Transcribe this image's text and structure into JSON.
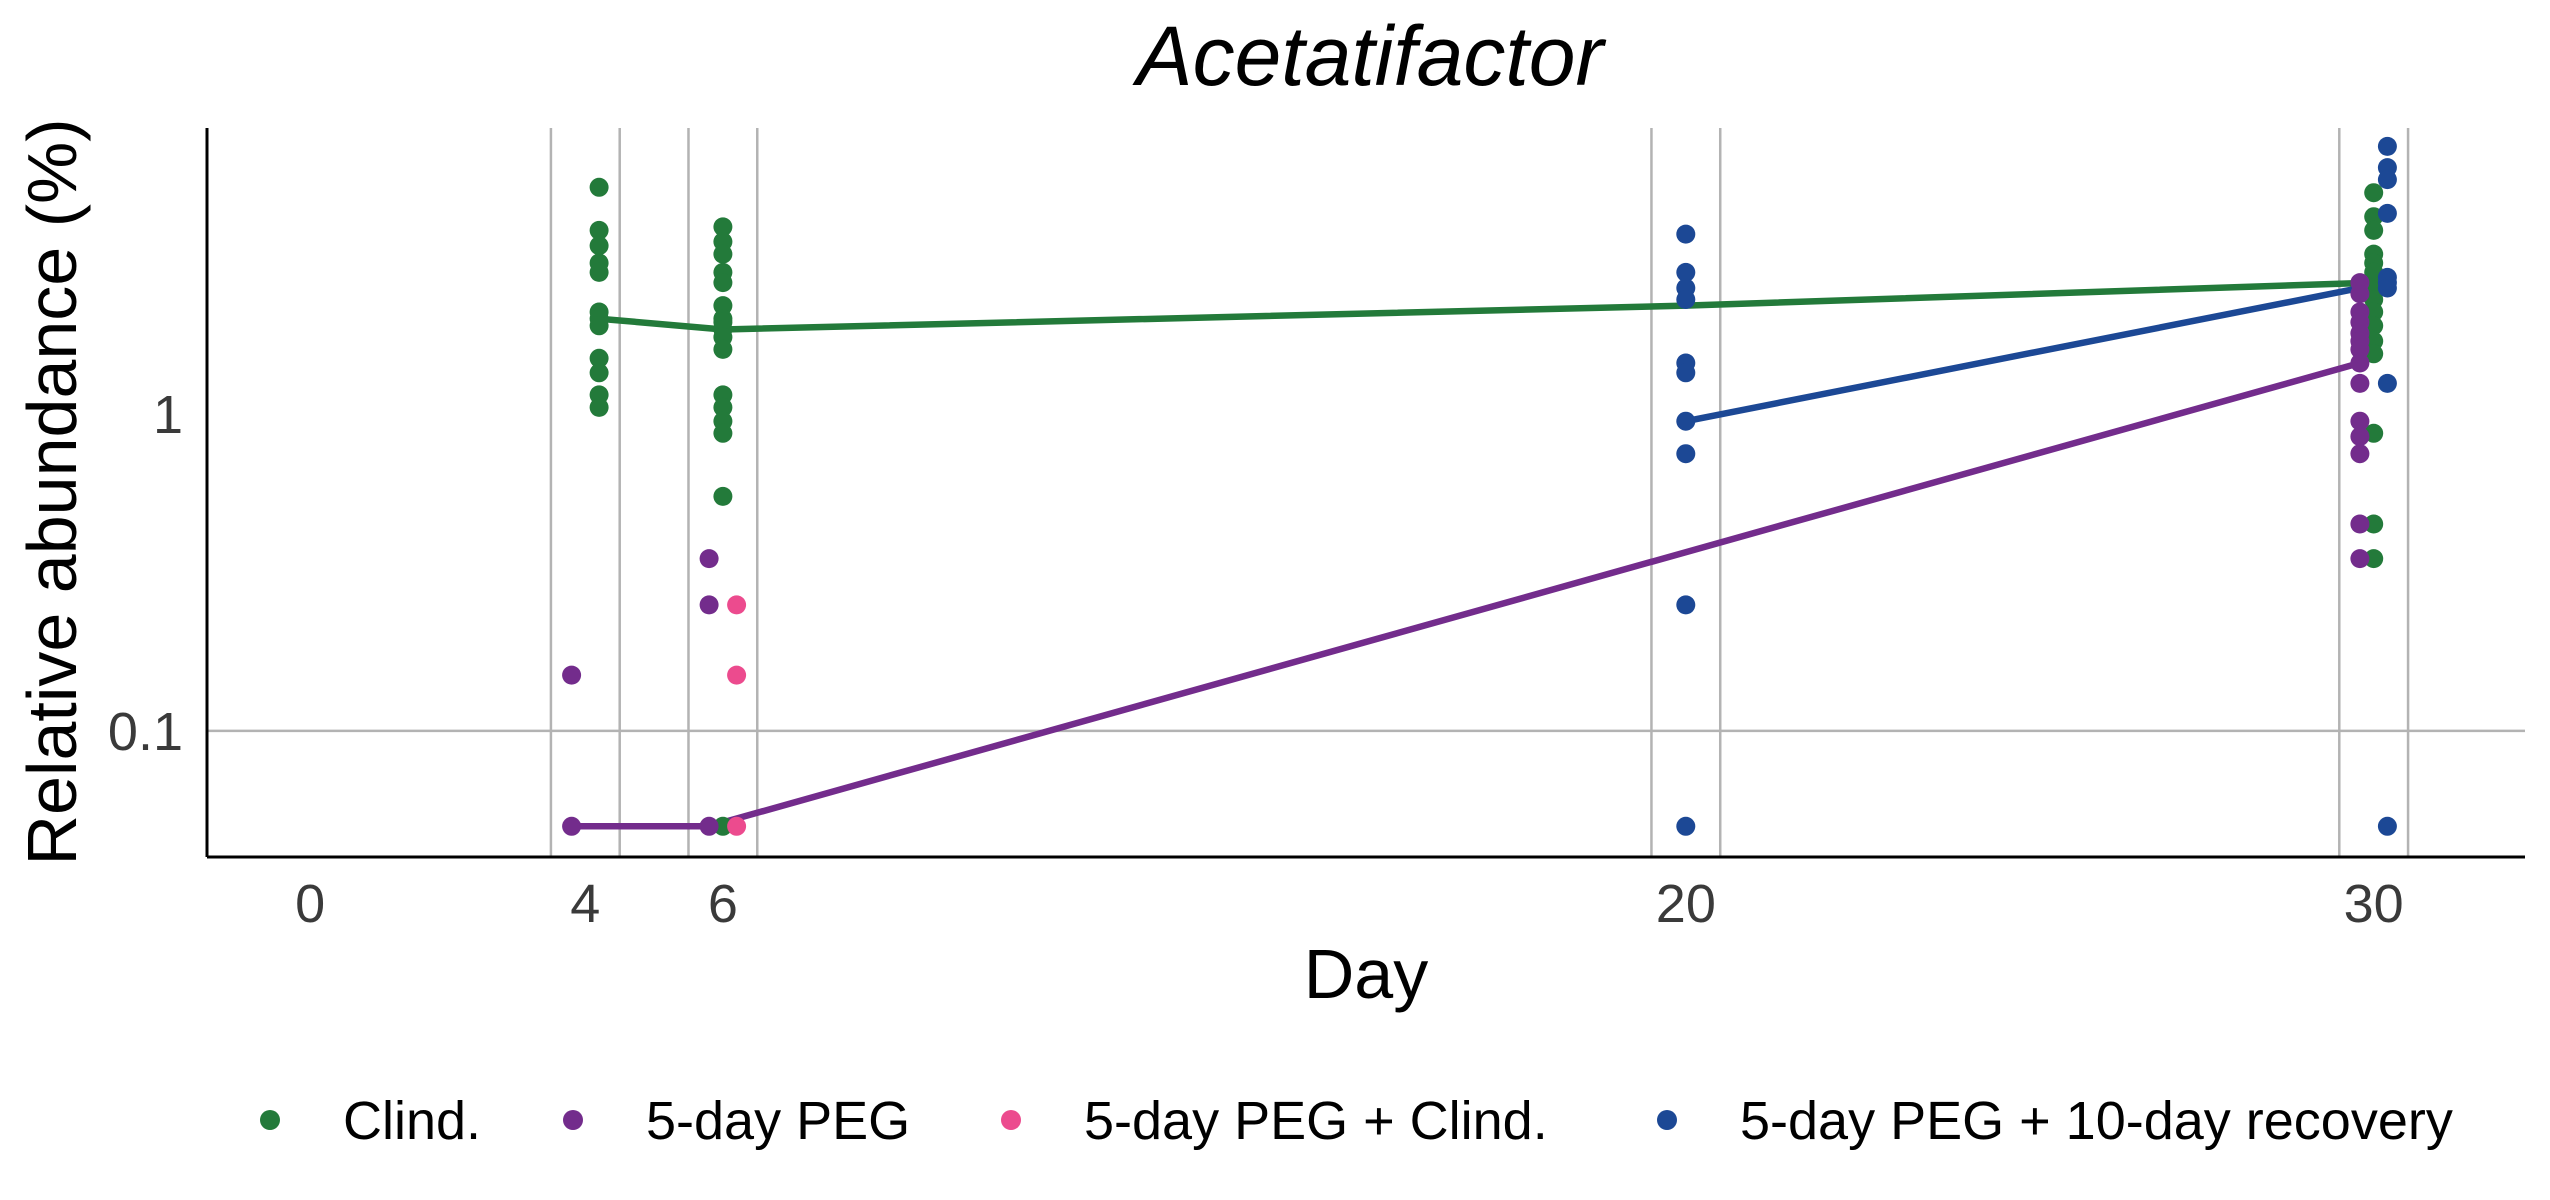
{
  "chart_data": {
    "type": "scatter",
    "title": "Acetatifactor",
    "xlabel": "Day",
    "ylabel": "Relative abundance (%)",
    "y_scale": "log",
    "xlim": [
      -1.5,
      32.2
    ],
    "ylim": [
      0.04,
      8
    ],
    "x_ticks": [
      0,
      4,
      6,
      20,
      30
    ],
    "x_tick_labels": [
      "0",
      "4",
      "6",
      "20",
      "30"
    ],
    "y_ticks": [
      0.1,
      1
    ],
    "y_tick_labels": [
      "0.1",
      "1"
    ],
    "grid": {
      "horizontal_lines_at": [
        0.1
      ],
      "vertical_lines_at": [
        3.5,
        4.5,
        5.5,
        6.5,
        19.5,
        20.5,
        29.5,
        30.5
      ]
    },
    "legend_position": "bottom",
    "series": [
      {
        "name": "Clind.",
        "color": "#237a3a",
        "points": [
          [
            4.2,
            5.2
          ],
          [
            4.2,
            3.8
          ],
          [
            4.2,
            3.4
          ],
          [
            4.2,
            3.0
          ],
          [
            4.2,
            2.8
          ],
          [
            4.2,
            2.1
          ],
          [
            4.2,
            2.0
          ],
          [
            4.2,
            1.9
          ],
          [
            4.2,
            1.5
          ],
          [
            4.2,
            1.35
          ],
          [
            4.2,
            1.15
          ],
          [
            4.2,
            1.05
          ],
          [
            6.0,
            3.9
          ],
          [
            6.0,
            3.5
          ],
          [
            6.0,
            3.2
          ],
          [
            6.0,
            2.8
          ],
          [
            6.0,
            2.6
          ],
          [
            6.0,
            2.2
          ],
          [
            6.0,
            2.0
          ],
          [
            6.0,
            1.95
          ],
          [
            6.0,
            1.85
          ],
          [
            6.0,
            1.75
          ],
          [
            6.0,
            1.6
          ],
          [
            6.0,
            1.15
          ],
          [
            6.0,
            1.05
          ],
          [
            6.0,
            0.95
          ],
          [
            6.0,
            0.87
          ],
          [
            6.0,
            0.55
          ],
          [
            6.0,
            0.05
          ],
          [
            30.0,
            5.0
          ],
          [
            30.0,
            4.2
          ],
          [
            30.0,
            3.8
          ],
          [
            30.0,
            3.2
          ],
          [
            30.0,
            3.0
          ],
          [
            30.0,
            2.8
          ],
          [
            30.0,
            2.5
          ],
          [
            30.0,
            2.3
          ],
          [
            30.0,
            2.1
          ],
          [
            30.0,
            1.9
          ],
          [
            30.0,
            1.7
          ],
          [
            30.0,
            1.55
          ],
          [
            30.0,
            0.87
          ],
          [
            30.0,
            0.45
          ],
          [
            30.0,
            0.35
          ]
        ],
        "line": [
          [
            4.2,
            2.0
          ],
          [
            6.0,
            1.85
          ],
          [
            20.0,
            2.2
          ],
          [
            30.0,
            2.6
          ]
        ]
      },
      {
        "name": "5-day PEG",
        "color": "#732c8c",
        "points": [
          [
            3.8,
            0.15
          ],
          [
            3.8,
            0.05
          ],
          [
            5.8,
            0.35
          ],
          [
            5.8,
            0.25
          ],
          [
            5.8,
            0.05
          ],
          [
            29.8,
            2.6
          ],
          [
            29.8,
            2.4
          ],
          [
            29.8,
            2.1
          ],
          [
            29.8,
            1.95
          ],
          [
            29.8,
            1.8
          ],
          [
            29.8,
            1.7
          ],
          [
            29.8,
            1.6
          ],
          [
            29.8,
            1.45
          ],
          [
            29.8,
            1.25
          ],
          [
            29.8,
            0.95
          ],
          [
            29.8,
            0.85
          ],
          [
            29.8,
            0.75
          ],
          [
            29.8,
            0.45
          ],
          [
            29.8,
            0.35
          ]
        ],
        "line": [
          [
            3.8,
            0.05
          ],
          [
            5.8,
            0.05
          ],
          [
            29.8,
            1.45
          ]
        ]
      },
      {
        "name": "5-day PEG + Clind.",
        "color": "#ec4b8e",
        "points": [
          [
            6.2,
            0.25
          ],
          [
            6.2,
            0.15
          ],
          [
            6.2,
            0.05
          ]
        ],
        "line": []
      },
      {
        "name": "5-day PEG + 10-day recovery",
        "color": "#1c4895",
        "points": [
          [
            20.0,
            3.7
          ],
          [
            20.0,
            2.8
          ],
          [
            20.0,
            2.5
          ],
          [
            20.0,
            2.3
          ],
          [
            20.0,
            1.45
          ],
          [
            20.0,
            1.35
          ],
          [
            20.0,
            0.95
          ],
          [
            20.0,
            0.75
          ],
          [
            20.0,
            0.25
          ],
          [
            20.0,
            0.05
          ],
          [
            30.2,
            7.0
          ],
          [
            30.2,
            6.0
          ],
          [
            30.2,
            5.5
          ],
          [
            30.2,
            4.3
          ],
          [
            30.2,
            2.7
          ],
          [
            30.2,
            2.6
          ],
          [
            30.2,
            2.5
          ],
          [
            30.2,
            1.25
          ],
          [
            30.2,
            0.05
          ]
        ],
        "line": [
          [
            20.0,
            0.95
          ],
          [
            30.2,
            2.6
          ]
        ]
      }
    ]
  }
}
